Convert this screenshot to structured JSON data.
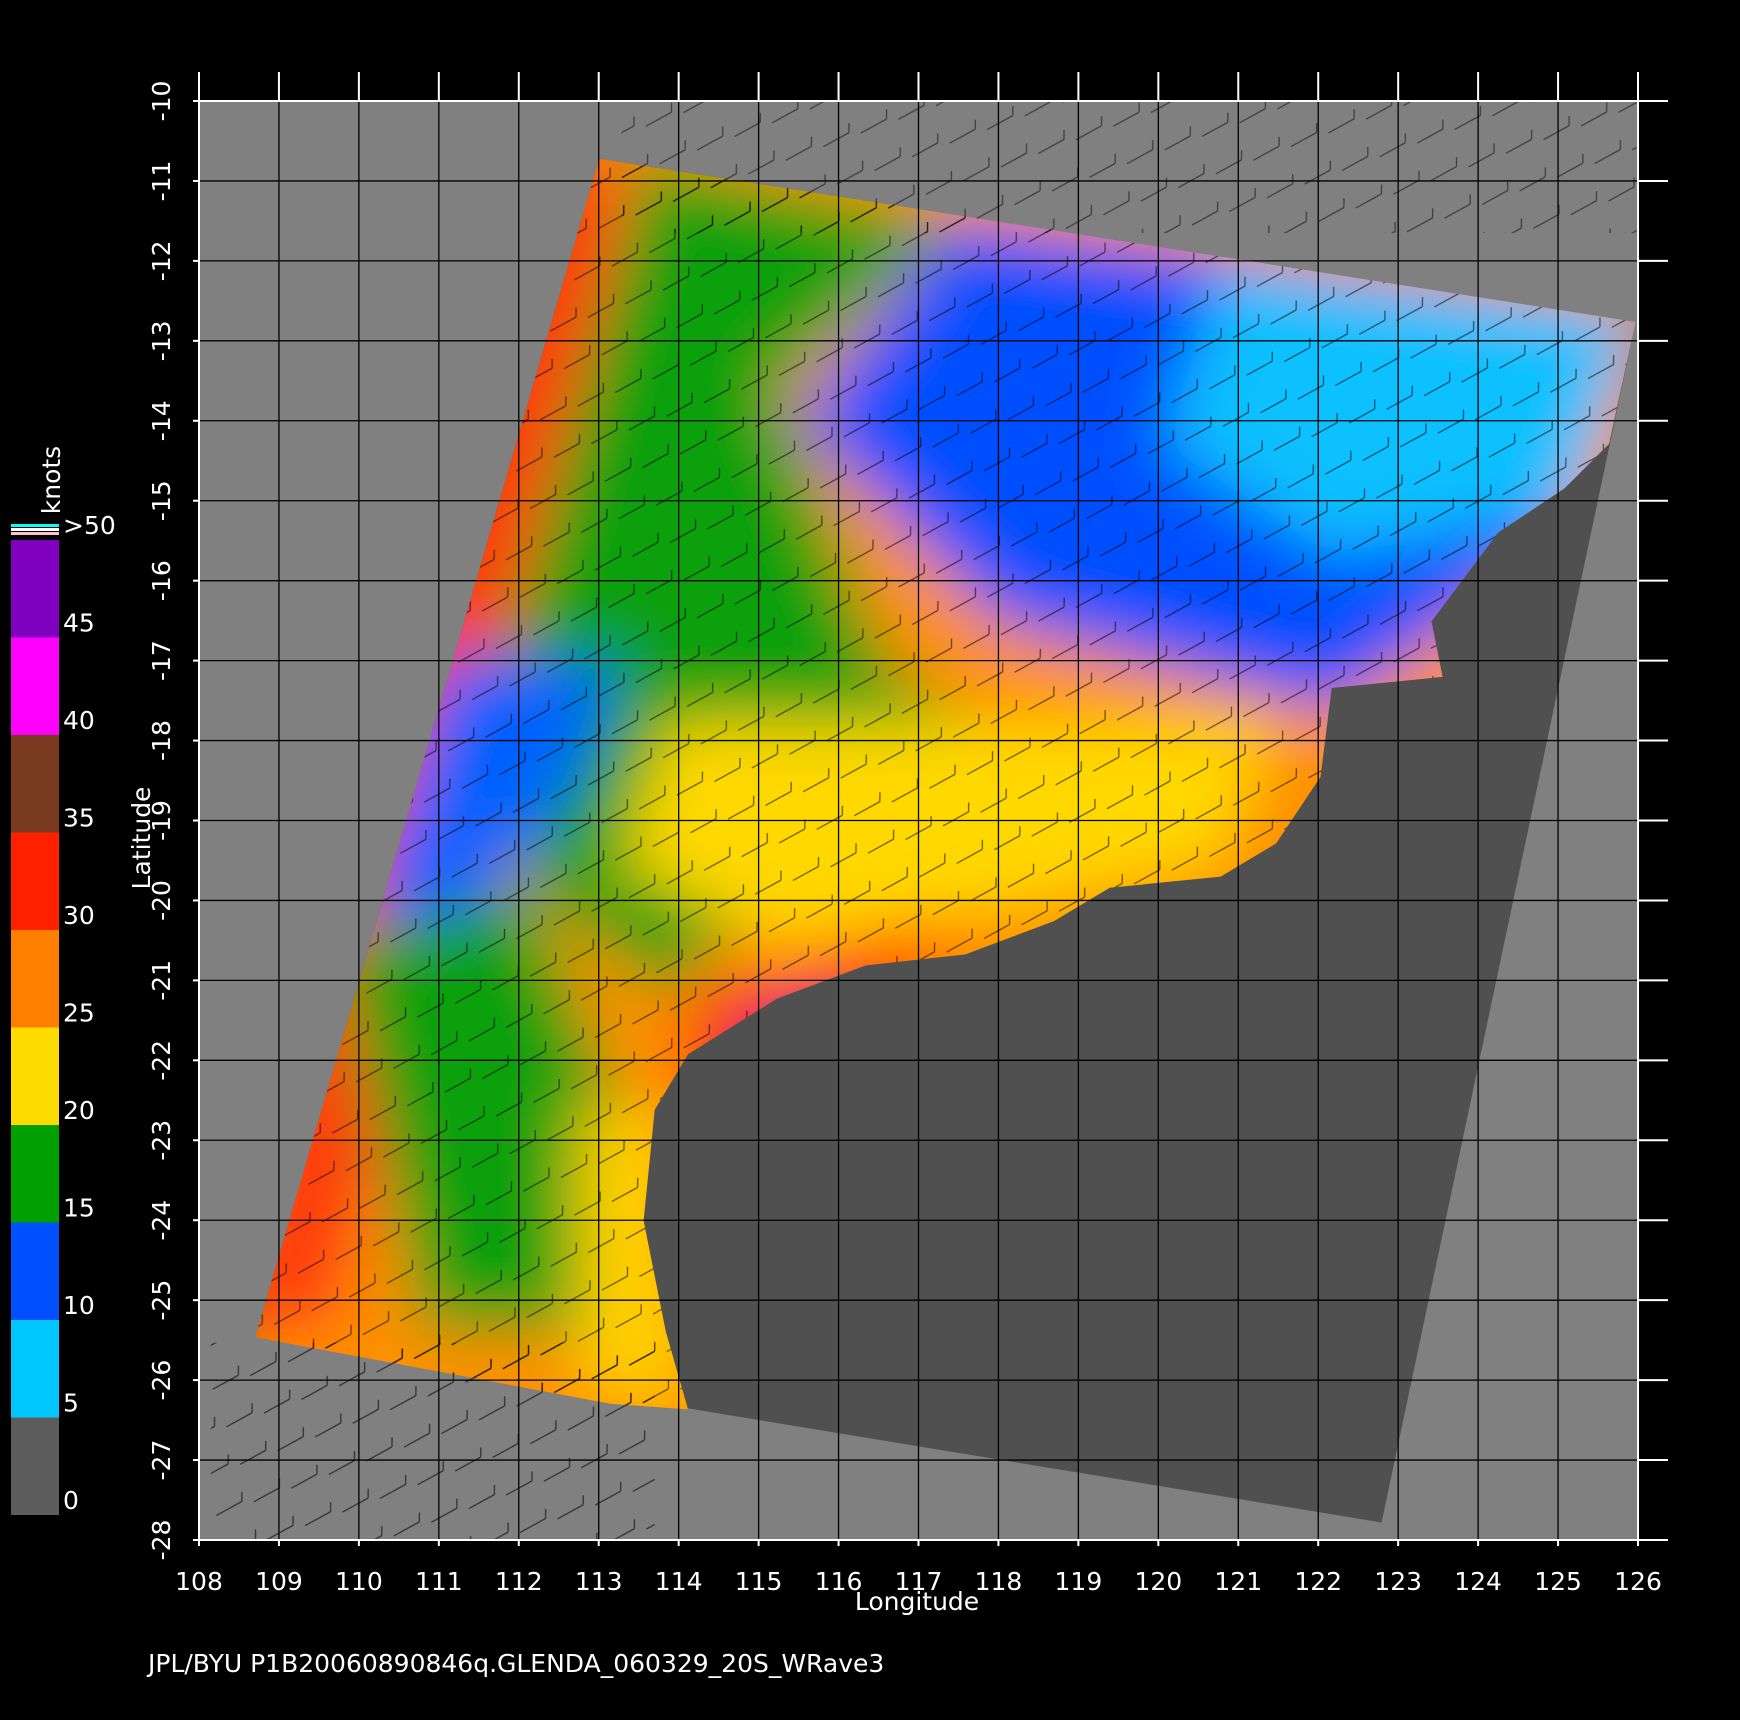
{
  "map": {
    "xlabel": "Longitude",
    "ylabel": "Latitude",
    "xlim": [
      108,
      126
    ],
    "ylim": [
      -28,
      -10
    ],
    "xticks": [
      108,
      109,
      110,
      111,
      112,
      113,
      114,
      115,
      116,
      117,
      118,
      119,
      120,
      121,
      122,
      123,
      124,
      125,
      126
    ],
    "yticks": [
      -10,
      -11,
      -12,
      -13,
      -14,
      -15,
      -16,
      -17,
      -18,
      -19,
      -20,
      -21,
      -22,
      -23,
      -24,
      -25,
      -26,
      -27,
      -28
    ]
  },
  "colorbar": {
    "label": "knots",
    "ticks": [
      0,
      5,
      10,
      15,
      20,
      25,
      30,
      35,
      40,
      45,
      {
        "value": 50,
        "label": ">50"
      }
    ],
    "colors": [
      "#5c5c5c",
      "#00c8ff",
      "#0050ff",
      "#00a000",
      "#ffdc00",
      "#ff8000",
      "#ff2000",
      "#7a3a20",
      "#ff00ff",
      "#8000c0"
    ]
  },
  "footer": "JPL/BYU  P1B20060890846q.GLENDA_060329_20S_WRave3"
}
